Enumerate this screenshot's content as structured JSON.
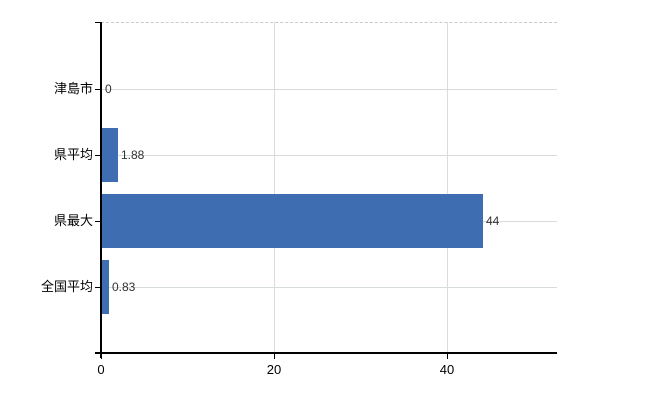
{
  "chart_data": {
    "type": "bar",
    "orientation": "horizontal",
    "title": "",
    "xlabel": "",
    "ylabel": "",
    "categories": [
      "津島市",
      "県平均",
      "県最大",
      "全国平均"
    ],
    "values": [
      0,
      1.88,
      44,
      0.83
    ],
    "value_labels": [
      "0",
      "1.88",
      "44",
      "0.83"
    ],
    "x_ticks": [
      0,
      20,
      40
    ],
    "x_tick_labels": [
      "0",
      "20",
      "40"
    ],
    "xlim": [
      0,
      52.7
    ],
    "grid": true,
    "legend": false,
    "colors": {
      "bar": "#3e6eb1",
      "axis": "#000000",
      "row_gridline": "#d6ddd6",
      "column_gridline": "#dcdcdc",
      "value_label_text": "#333333",
      "background": "#ffffff"
    }
  }
}
